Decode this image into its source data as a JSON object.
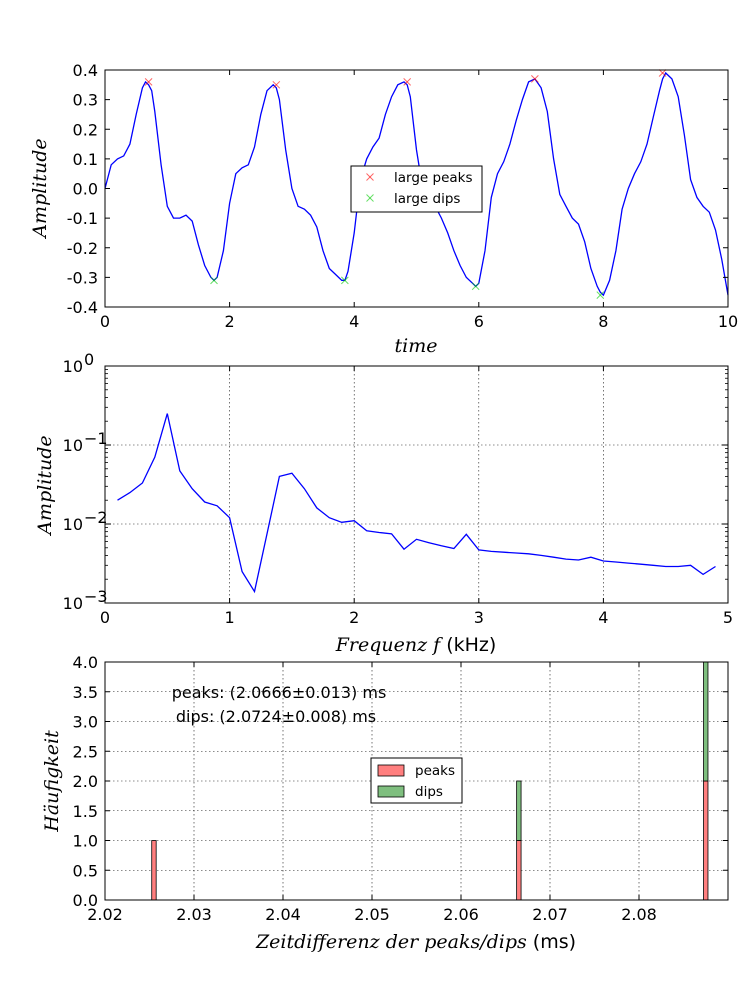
{
  "chart_data": [
    {
      "type": "line",
      "xlabel": "time",
      "ylabel": "Amplitude",
      "xlim": [
        0,
        10
      ],
      "ylim": [
        -0.4,
        0.4
      ],
      "xticks": [
        0,
        2,
        4,
        6,
        8,
        10
      ],
      "yticks": [
        -0.4,
        -0.3,
        -0.2,
        -0.1,
        0.0,
        0.1,
        0.2,
        0.3,
        0.4
      ],
      "grid": false,
      "legend": {
        "placement": "center",
        "entries": [
          "large peaks",
          "large dips"
        ]
      },
      "series": [
        {
          "name": "",
          "color": "#0000ff",
          "x": [
            0,
            0.1,
            0.2,
            0.3,
            0.4,
            0.5,
            0.6,
            0.65,
            0.7,
            0.75,
            0.8,
            0.9,
            1.0,
            1.1,
            1.2,
            1.3,
            1.4,
            1.5,
            1.6,
            1.7,
            1.75,
            1.8,
            1.9,
            2.0,
            2.1,
            2.2,
            2.3,
            2.4,
            2.5,
            2.6,
            2.7,
            2.75,
            2.8,
            2.9,
            3.0,
            3.1,
            3.2,
            3.3,
            3.4,
            3.5,
            3.6,
            3.7,
            3.8,
            3.85,
            3.9,
            4.0,
            4.1,
            4.2,
            4.3,
            4.4,
            4.5,
            4.6,
            4.7,
            4.8,
            4.85,
            4.9,
            5.0,
            5.1,
            5.2,
            5.3,
            5.4,
            5.5,
            5.6,
            5.7,
            5.8,
            5.9,
            5.95,
            6.0,
            6.1,
            6.2,
            6.3,
            6.4,
            6.5,
            6.6,
            6.7,
            6.8,
            6.9,
            7.0,
            7.1,
            7.2,
            7.3,
            7.4,
            7.5,
            7.6,
            7.7,
            7.8,
            7.9,
            7.95,
            8.0,
            8.1,
            8.2,
            8.3,
            8.4,
            8.5,
            8.6,
            8.7,
            8.8,
            8.9,
            8.95,
            9.0,
            9.1,
            9.2,
            9.3,
            9.4,
            9.5,
            9.6,
            9.7,
            9.8,
            9.9,
            10.0
          ],
          "y": [
            0.0,
            0.08,
            0.1,
            0.11,
            0.15,
            0.25,
            0.34,
            0.36,
            0.35,
            0.33,
            0.26,
            0.08,
            -0.06,
            -0.1,
            -0.1,
            -0.09,
            -0.11,
            -0.19,
            -0.26,
            -0.3,
            -0.31,
            -0.3,
            -0.21,
            -0.05,
            0.05,
            0.07,
            0.08,
            0.14,
            0.25,
            0.33,
            0.35,
            0.34,
            0.3,
            0.13,
            0.0,
            -0.06,
            -0.07,
            -0.09,
            -0.13,
            -0.21,
            -0.27,
            -0.29,
            -0.31,
            -0.31,
            -0.28,
            -0.15,
            0.03,
            0.1,
            0.14,
            0.17,
            0.25,
            0.31,
            0.35,
            0.36,
            0.35,
            0.31,
            0.13,
            0.0,
            -0.04,
            -0.06,
            -0.1,
            -0.15,
            -0.21,
            -0.26,
            -0.3,
            -0.32,
            -0.33,
            -0.32,
            -0.21,
            -0.03,
            0.05,
            0.09,
            0.15,
            0.23,
            0.3,
            0.36,
            0.37,
            0.34,
            0.26,
            0.1,
            -0.02,
            -0.06,
            -0.1,
            -0.12,
            -0.18,
            -0.27,
            -0.33,
            -0.35,
            -0.36,
            -0.31,
            -0.21,
            -0.07,
            0.0,
            0.05,
            0.09,
            0.15,
            0.24,
            0.33,
            0.37,
            0.39,
            0.37,
            0.31,
            0.18,
            0.03,
            -0.03,
            -0.06,
            -0.08,
            -0.14,
            -0.24,
            -0.36
          ]
        }
      ],
      "markers": {
        "large_peaks": {
          "color": "#ff0000",
          "x": [
            0.7,
            2.75,
            4.85,
            6.9,
            8.95
          ],
          "y": [
            0.36,
            0.35,
            0.36,
            0.37,
            0.39
          ]
        },
        "large_dips": {
          "color": "#00cc00",
          "x": [
            1.75,
            3.85,
            5.95,
            7.95
          ],
          "y": [
            -0.31,
            -0.31,
            -0.33,
            -0.36
          ]
        }
      }
    },
    {
      "type": "line",
      "xlabel": "Frequenz f (kHz)",
      "ylabel": "Amplitude",
      "xlim": [
        0,
        5
      ],
      "ylim": [
        0.001,
        1
      ],
      "yscale": "log",
      "xticks": [
        0,
        1,
        2,
        3,
        4,
        5
      ],
      "yticks": [
        0.001,
        0.01,
        0.1,
        1
      ],
      "grid": true,
      "series": [
        {
          "name": "",
          "color": "#0000ff",
          "x": [
            0.1,
            0.2,
            0.3,
            0.4,
            0.5,
            0.6,
            0.7,
            0.8,
            0.9,
            1.0,
            1.1,
            1.2,
            1.3,
            1.4,
            1.5,
            1.6,
            1.7,
            1.8,
            1.9,
            2.0,
            2.1,
            2.2,
            2.3,
            2.4,
            2.5,
            2.6,
            2.7,
            2.8,
            2.9,
            3.0,
            3.1,
            3.2,
            3.3,
            3.4,
            3.5,
            3.6,
            3.7,
            3.8,
            3.9,
            4.0,
            4.1,
            4.2,
            4.3,
            4.4,
            4.5,
            4.6,
            4.7,
            4.8,
            4.9
          ],
          "y": [
            0.02,
            0.025,
            0.033,
            0.07,
            0.25,
            0.047,
            0.028,
            0.019,
            0.017,
            0.012,
            0.0025,
            0.0014,
            0.0075,
            0.04,
            0.044,
            0.028,
            0.016,
            0.012,
            0.0105,
            0.011,
            0.0082,
            0.0078,
            0.0075,
            0.0048,
            0.0064,
            0.0058,
            0.0053,
            0.0049,
            0.0074,
            0.0047,
            0.0045,
            0.0044,
            0.0043,
            0.0042,
            0.004,
            0.0038,
            0.0036,
            0.0035,
            0.0038,
            0.0034,
            0.0033,
            0.0032,
            0.0031,
            0.003,
            0.0029,
            0.0029,
            0.003,
            0.0023,
            0.0029
          ]
        }
      ]
    },
    {
      "type": "bar",
      "xlabel": "Zeitdifferenz der peaks/dips (ms)",
      "ylabel": "Häufigkeit",
      "xlim": [
        2.02,
        2.09
      ],
      "ylim": [
        0,
        4
      ],
      "xticks": [
        2.02,
        2.03,
        2.04,
        2.05,
        2.06,
        2.07,
        2.08
      ],
      "yticks": [
        0.0,
        0.5,
        1.0,
        1.5,
        2.0,
        2.5,
        3.0,
        3.5,
        4.0
      ],
      "grid": true,
      "stacked": true,
      "bin_width": 0.0005,
      "legend": {
        "placement": "center",
        "entries": [
          "peaks",
          "dips"
        ]
      },
      "annotations": [
        "peaks: (2.0666±0.013) ms",
        "dips: (2.0724±0.008) ms"
      ],
      "series": [
        {
          "name": "peaks",
          "color": "#ff7f7f",
          "x": [
            2.0255,
            2.0665,
            2.0875
          ],
          "values": [
            1,
            1,
            2
          ]
        },
        {
          "name": "dips",
          "color": "#7fbf7f",
          "x": [
            2.0665,
            2.0875
          ],
          "values": [
            1,
            2
          ]
        }
      ]
    }
  ]
}
